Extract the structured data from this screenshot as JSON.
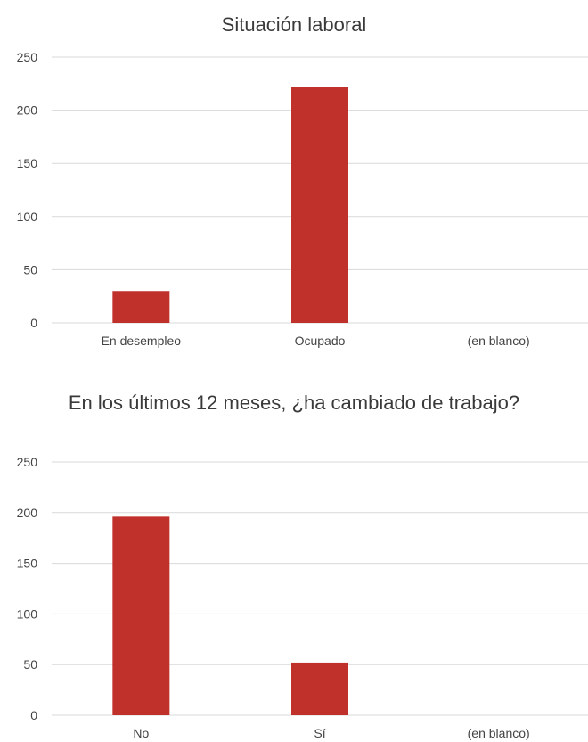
{
  "chart_data": [
    {
      "type": "bar",
      "title": "Situación laboral",
      "categories": [
        "En desempleo",
        "Ocupado",
        "(en blanco)"
      ],
      "values": [
        30,
        222,
        0
      ],
      "ylim": [
        0,
        250
      ],
      "yticks": [
        0,
        50,
        100,
        150,
        200,
        250
      ],
      "grid": true,
      "bar_color": "#c0312b"
    },
    {
      "type": "bar",
      "title": "En los últimos 12 meses, ¿ha cambiado de trabajo?",
      "categories": [
        "No",
        "Sí",
        "(en blanco)"
      ],
      "values": [
        196,
        52,
        0
      ],
      "ylim": [
        0,
        250
      ],
      "yticks": [
        0,
        50,
        100,
        150,
        200,
        250
      ],
      "grid": true,
      "bar_color": "#c0312b"
    }
  ]
}
